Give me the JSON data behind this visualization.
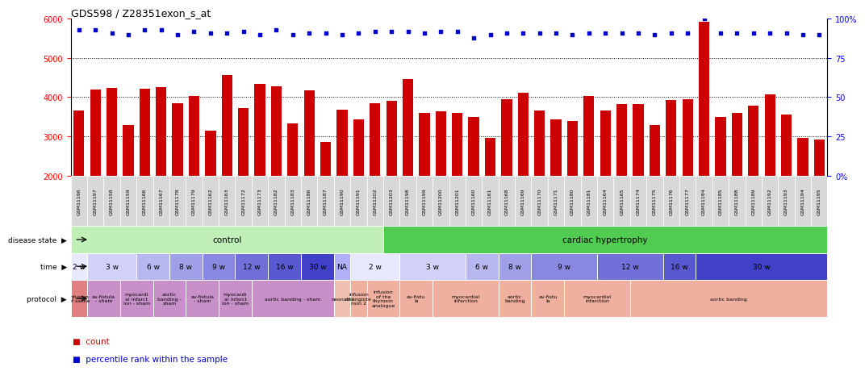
{
  "title": "GDS598 / Z28351exon_s_at",
  "samples": [
    "GSM11196",
    "GSM11197",
    "GSM11158",
    "GSM11159",
    "GSM11166",
    "GSM11167",
    "GSM11178",
    "GSM11179",
    "GSM11162",
    "GSM11163",
    "GSM11172",
    "GSM11173",
    "GSM11182",
    "GSM11183",
    "GSM11186",
    "GSM11187",
    "GSM11190",
    "GSM11191",
    "GSM11202",
    "GSM11203",
    "GSM11198",
    "GSM11199",
    "GSM11200",
    "GSM11201",
    "GSM11160",
    "GSM11161",
    "GSM11168",
    "GSM11169",
    "GSM11170",
    "GSM11171",
    "GSM11180",
    "GSM11181",
    "GSM11164",
    "GSM11165",
    "GSM11174",
    "GSM11175",
    "GSM11176",
    "GSM11177",
    "GSM11184",
    "GSM11185",
    "GSM11188",
    "GSM11189",
    "GSM11192",
    "GSM11193",
    "GSM11194",
    "GSM11195"
  ],
  "counts": [
    3650,
    4200,
    4230,
    3280,
    4220,
    4250,
    3850,
    4030,
    3150,
    4570,
    3730,
    4330,
    4280,
    3340,
    4180,
    2860,
    3680,
    3430,
    3850,
    3900,
    4460,
    3600,
    3630,
    3590,
    3500,
    2960,
    3950,
    4110,
    3650,
    3440,
    3400,
    4040,
    3660,
    3830,
    3830,
    3290,
    3920,
    3940,
    5920,
    3500,
    3600,
    3780,
    4070,
    3560,
    2960,
    2920
  ],
  "percentiles": [
    93,
    93,
    91,
    90,
    93,
    93,
    90,
    92,
    91,
    91,
    92,
    90,
    93,
    90,
    91,
    91,
    90,
    91,
    92,
    92,
    92,
    91,
    92,
    92,
    88,
    90,
    91,
    91,
    91,
    91,
    90,
    91,
    91,
    91,
    91,
    90,
    91,
    91,
    100,
    91,
    91,
    91,
    91,
    91,
    90,
    90
  ],
  "bar_color": "#cc0000",
  "dot_color": "#0000cc",
  "ylim_left": [
    2000,
    6000
  ],
  "ylim_right": [
    0,
    100
  ],
  "yticks_left": [
    2000,
    3000,
    4000,
    5000,
    6000
  ],
  "yticks_right": [
    0,
    25,
    50,
    75,
    100
  ],
  "disease_state_groups": [
    {
      "label": "control",
      "start": 0,
      "end": 19,
      "color": "#c0f0b8"
    },
    {
      "label": "cardiac hypertrophy",
      "start": 19,
      "end": 46,
      "color": "#50cc50"
    }
  ],
  "time_groups": [
    {
      "label": "2 w",
      "start": 0,
      "end": 1,
      "color": "#e8e8ff"
    },
    {
      "label": "3 w",
      "start": 1,
      "end": 4,
      "color": "#d0d0f8"
    },
    {
      "label": "6 w",
      "start": 4,
      "end": 6,
      "color": "#b8b8f0"
    },
    {
      "label": "8 w",
      "start": 6,
      "end": 8,
      "color": "#a0a0e8"
    },
    {
      "label": "9 w",
      "start": 8,
      "end": 10,
      "color": "#8888e0"
    },
    {
      "label": "12 w",
      "start": 10,
      "end": 12,
      "color": "#7070d8"
    },
    {
      "label": "16 w",
      "start": 12,
      "end": 14,
      "color": "#5858d0"
    },
    {
      "label": "30 w",
      "start": 14,
      "end": 16,
      "color": "#4040c8"
    },
    {
      "label": "NA",
      "start": 16,
      "end": 17,
      "color": "#b0b0f8"
    },
    {
      "label": "2 w",
      "start": 17,
      "end": 20,
      "color": "#e8e8ff"
    },
    {
      "label": "3 w",
      "start": 20,
      "end": 24,
      "color": "#d0d0f8"
    },
    {
      "label": "6 w",
      "start": 24,
      "end": 26,
      "color": "#b8b8f0"
    },
    {
      "label": "8 w",
      "start": 26,
      "end": 28,
      "color": "#a0a0e8"
    },
    {
      "label": "9 w",
      "start": 28,
      "end": 32,
      "color": "#8888e0"
    },
    {
      "label": "12 w",
      "start": 32,
      "end": 36,
      "color": "#7070d8"
    },
    {
      "label": "16 w",
      "start": 36,
      "end": 38,
      "color": "#5858d0"
    },
    {
      "label": "30 w",
      "start": 38,
      "end": 46,
      "color": "#4040c8"
    }
  ],
  "protocol_groups": [
    {
      "label": "infusion\nof saline",
      "start": 0,
      "end": 1,
      "color": "#e08080"
    },
    {
      "label": "av-fistula\n- sham",
      "start": 1,
      "end": 3,
      "color": "#c890c8"
    },
    {
      "label": "myocardi\nal infarct\nion - sham",
      "start": 3,
      "end": 5,
      "color": "#c890c8"
    },
    {
      "label": "aortic\nbanding -\nsham",
      "start": 5,
      "end": 7,
      "color": "#c890c8"
    },
    {
      "label": "av-fistula\n- sham",
      "start": 7,
      "end": 9,
      "color": "#c890c8"
    },
    {
      "label": "myocardi\nal infarct\nion - sham",
      "start": 9,
      "end": 11,
      "color": "#c890c8"
    },
    {
      "label": "aortic banding - sham",
      "start": 11,
      "end": 16,
      "color": "#c890c8"
    },
    {
      "label": "neonatal",
      "start": 16,
      "end": 17,
      "color": "#f0c0b0"
    },
    {
      "label": "infusion\nof angiote\nnsin 2",
      "start": 17,
      "end": 18,
      "color": "#f0b0a0"
    },
    {
      "label": "infusion\nof the\nthyroxin\nanalogue",
      "start": 18,
      "end": 20,
      "color": "#f0b0a0"
    },
    {
      "label": "av-fistu\nla",
      "start": 20,
      "end": 22,
      "color": "#f0b0a0"
    },
    {
      "label": "myocardial\ninfarction",
      "start": 22,
      "end": 26,
      "color": "#f0b0a0"
    },
    {
      "label": "aortic\nbanding",
      "start": 26,
      "end": 28,
      "color": "#f0b0a0"
    },
    {
      "label": "av-fistu\nla",
      "start": 28,
      "end": 30,
      "color": "#f0b0a0"
    },
    {
      "label": "myocardial\ninfarction",
      "start": 30,
      "end": 34,
      "color": "#f0b0a0"
    },
    {
      "label": "aortic banding",
      "start": 34,
      "end": 46,
      "color": "#f0b0a0"
    }
  ],
  "xlabel_bg": "#d8d8d8",
  "legend_count_color": "#cc0000",
  "legend_pct_color": "#0000cc"
}
